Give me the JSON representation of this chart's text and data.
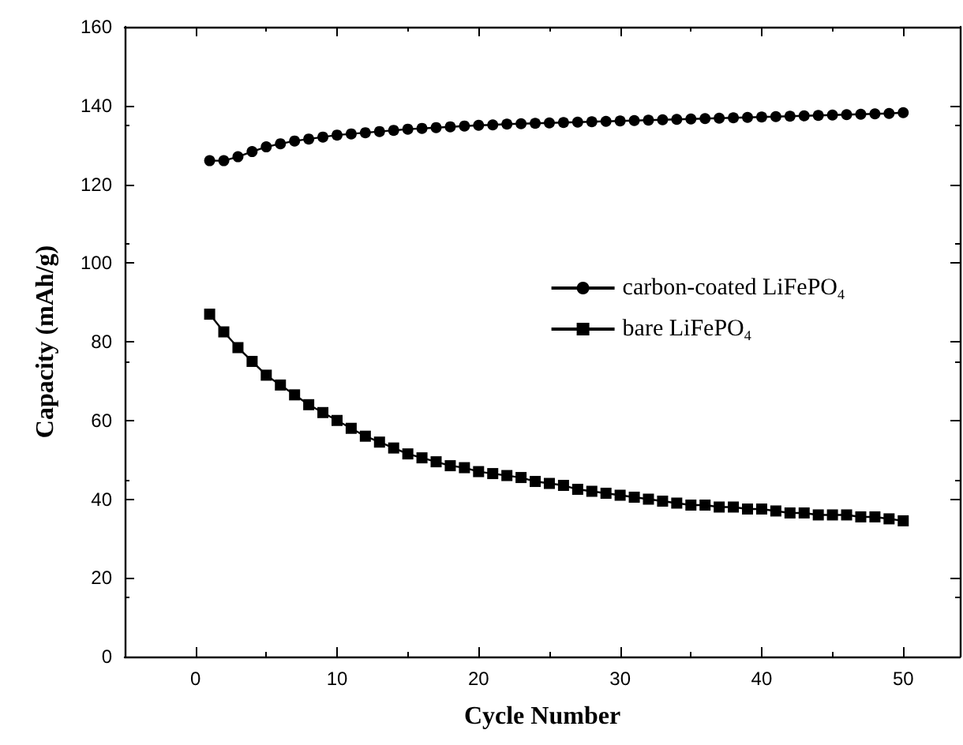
{
  "chart_data": {
    "type": "line",
    "xlabel": "Cycle Number",
    "ylabel": "Capacity (mAh/g)",
    "x": [
      1,
      2,
      3,
      4,
      5,
      6,
      7,
      8,
      9,
      10,
      11,
      12,
      13,
      14,
      15,
      16,
      17,
      18,
      19,
      20,
      21,
      22,
      23,
      24,
      25,
      26,
      27,
      28,
      29,
      30,
      31,
      32,
      33,
      34,
      35,
      36,
      37,
      38,
      39,
      40,
      41,
      42,
      43,
      44,
      45,
      46,
      47,
      48,
      49,
      50
    ],
    "series": [
      {
        "name": "carbon-coated LiFePO$_{4}$",
        "color": "#000000",
        "marker": "circle",
        "values": [
          126,
          126,
          127,
          128.3,
          129.5,
          130.3,
          131,
          131.5,
          132,
          132.5,
          132.8,
          133.1,
          133.4,
          133.7,
          134,
          134.2,
          134.4,
          134.6,
          134.8,
          135,
          135.1,
          135.3,
          135.4,
          135.5,
          135.6,
          135.7,
          135.8,
          135.9,
          136,
          136.1,
          136.2,
          136.3,
          136.4,
          136.5,
          136.6,
          136.7,
          136.8,
          136.9,
          137,
          137.1,
          137.2,
          137.3,
          137.4,
          137.5,
          137.6,
          137.7,
          137.8,
          137.9,
          138,
          138.2
        ]
      },
      {
        "name": "bare LiFePO$_{4}$",
        "color": "#000000",
        "marker": "square",
        "values": [
          87,
          82.5,
          78.5,
          75,
          71.5,
          69,
          66.5,
          64,
          62,
          60,
          58,
          56,
          54.5,
          53,
          51.5,
          50.5,
          49.5,
          48.5,
          48,
          47,
          46.5,
          46,
          45.5,
          44.5,
          44,
          43.5,
          42.5,
          42,
          41.5,
          41,
          40.5,
          40,
          39.5,
          39,
          38.5,
          38.5,
          38,
          38,
          37.5,
          37.5,
          37,
          36.5,
          36.5,
          36,
          36,
          36,
          35.5,
          35.5,
          35,
          34.5
        ]
      }
    ],
    "xlim": [
      -5,
      54
    ],
    "xticks": [
      0,
      10,
      20,
      30,
      40,
      50
    ],
    "ylim": [
      0,
      160
    ],
    "yticks": [
      0,
      20,
      40,
      60,
      80,
      100,
      120,
      140,
      160
    ],
    "grid": false,
    "legend": "right",
    "line_style": "solid"
  }
}
